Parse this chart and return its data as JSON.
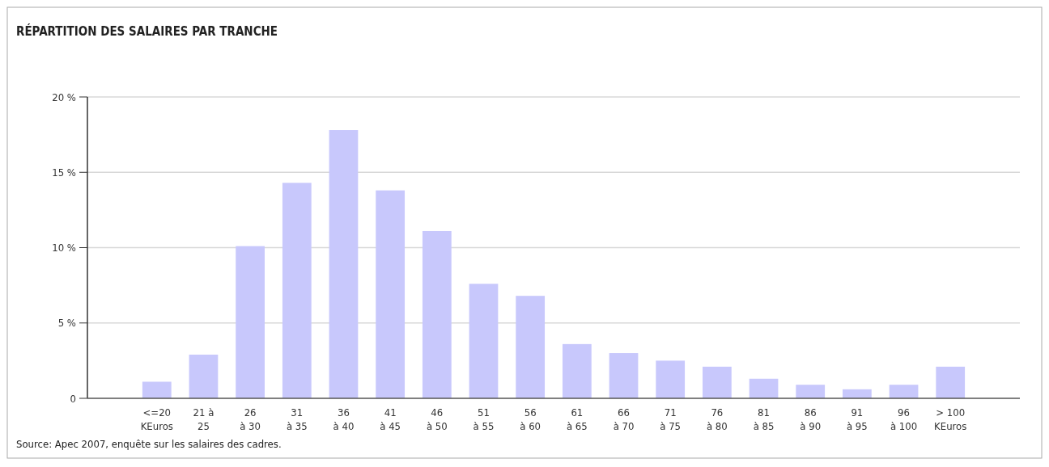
{
  "chart_data": {
    "type": "bar",
    "title": "RÉPARTITION DES SALAIRES PAR TRANCHE",
    "categories": [
      "<=20\nKEuros",
      "21 à\n25",
      "26\nà 30",
      "31\nà 35",
      "36\nà 40",
      "41\nà 45",
      "46\nà 50",
      "51\nà 55",
      "56\nà 60",
      "61\nà 65",
      "66\nà 70",
      "71\nà 75",
      "76\nà 80",
      "81\nà 85",
      "86\nà 90",
      "91\nà 95",
      "96\nà 100",
      "> 100\nKEuros"
    ],
    "values": [
      1.1,
      2.9,
      10.1,
      14.3,
      17.8,
      13.8,
      11.1,
      7.6,
      6.8,
      3.6,
      3.0,
      2.5,
      2.1,
      1.3,
      0.9,
      0.6,
      0.9,
      2.1
    ],
    "color": "#c8c8fc",
    "ylim": [
      0,
      20
    ],
    "yticks": [
      0,
      {
        "value": 5,
        "label": "5 %"
      },
      {
        "value": 10,
        "label": "10 %"
      },
      {
        "value": 15,
        "label": "15 %"
      },
      {
        "value": 20,
        "label": "20 %"
      }
    ],
    "grid": "y",
    "annotations": [
      "Source: Apec 2007, enquête sur les salaires des cadres."
    ]
  }
}
